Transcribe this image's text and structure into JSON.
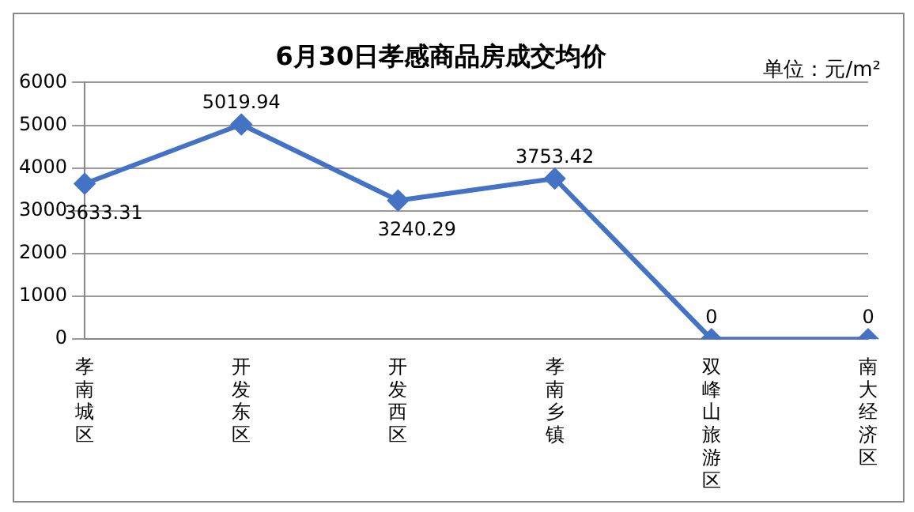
{
  "chart_data": {
    "type": "line",
    "title": "6月30日孝感商品房成交均价",
    "annotations": [
      "单位：元/m²"
    ],
    "categories": [
      "孝南城区",
      "开发东区",
      "开发西区",
      "孝南乡镇",
      "双峰山旅游区",
      "南大经济区"
    ],
    "series": [
      {
        "color": "#4472c4",
        "values": [
          3633.31,
          5019.94,
          3240.29,
          3753.42,
          0,
          0
        ]
      }
    ],
    "ylim": [
      0,
      6000
    ],
    "yticks": [
      0,
      1000,
      2000,
      3000,
      4000,
      5000,
      6000
    ],
    "grid": "y",
    "marker": "diamond",
    "line_style": "solid",
    "data_labels": true,
    "legend": false
  }
}
